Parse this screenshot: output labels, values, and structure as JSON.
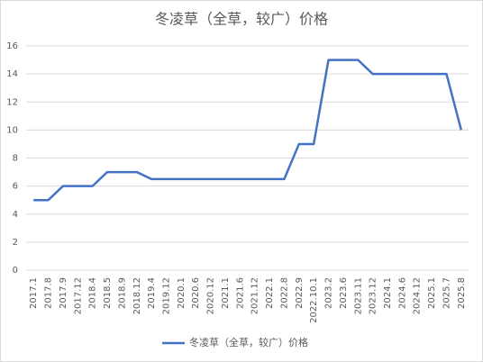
{
  "chart_data": {
    "type": "line",
    "title": "冬凌草（全草，较广）价格",
    "categories": [
      "2017.1",
      "2017.8",
      "2017.9",
      "2017.12",
      "2018.4",
      "2018.5",
      "2018.9",
      "2018.12",
      "2019.4",
      "2019.12",
      "2020.1",
      "2020.6",
      "2020.12",
      "2021.1",
      "2021.6",
      "2021.12",
      "2022.1",
      "2022.8",
      "2022.9",
      "2022.10.1",
      "2023.2",
      "2023.6",
      "2023.11",
      "2023.12",
      "2024.1",
      "2024.6",
      "2024.12",
      "2025.1",
      "2025.7",
      "2025.8"
    ],
    "series": [
      {
        "name": "冬凌草（全草，较广）价格",
        "color": "#4472c4",
        "values": [
          5,
          5,
          6,
          6,
          6,
          7,
          7,
          7,
          6.5,
          6.5,
          6.5,
          6.5,
          6.5,
          6.5,
          6.5,
          6.5,
          6.5,
          6.5,
          9,
          9,
          15,
          15,
          15,
          14,
          14,
          14,
          14,
          14,
          14,
          10
        ]
      }
    ],
    "ylim": [
      0,
      16
    ],
    "yticks": [
      0,
      2,
      4,
      6,
      8,
      10,
      12,
      14,
      16
    ],
    "grid": true,
    "legend": "bottom"
  }
}
